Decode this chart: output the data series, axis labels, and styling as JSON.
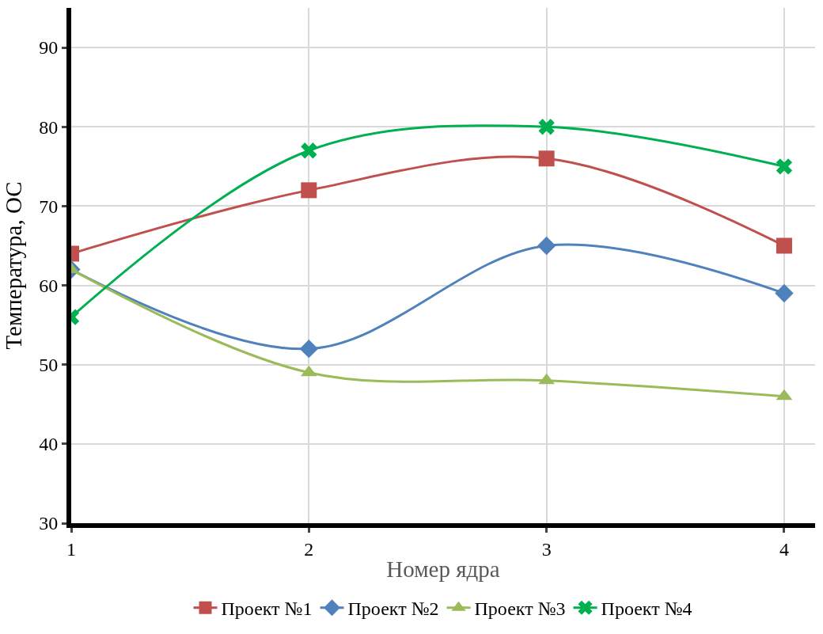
{
  "chart_data": {
    "type": "line",
    "xlabel": "Номер ядра",
    "ylabel": "Температура, ОС",
    "x": [
      1,
      2,
      3,
      4
    ],
    "xlim": [
      1,
      4.13
    ],
    "xticks": [
      1,
      2,
      3,
      4
    ],
    "ylim": [
      30,
      95
    ],
    "yticks": [
      30,
      40,
      50,
      60,
      70,
      80,
      90
    ],
    "grid": true,
    "legend": "bottom",
    "line_style": "solid",
    "series": [
      {
        "name": "Проект №1",
        "color": "#c0504d",
        "marker": "square",
        "values": [
          64,
          72,
          76,
          65
        ]
      },
      {
        "name": "Проект №2",
        "color": "#4f81bd",
        "marker": "diamond",
        "values": [
          62,
          52,
          65,
          59
        ]
      },
      {
        "name": "Проект №3",
        "color": "#9bbb59",
        "marker": "triangle",
        "values": [
          62,
          49,
          48,
          46
        ]
      },
      {
        "name": "Проект №4",
        "color": "#00b050",
        "marker": "cross",
        "values": [
          56,
          77,
          80,
          75
        ]
      }
    ]
  }
}
